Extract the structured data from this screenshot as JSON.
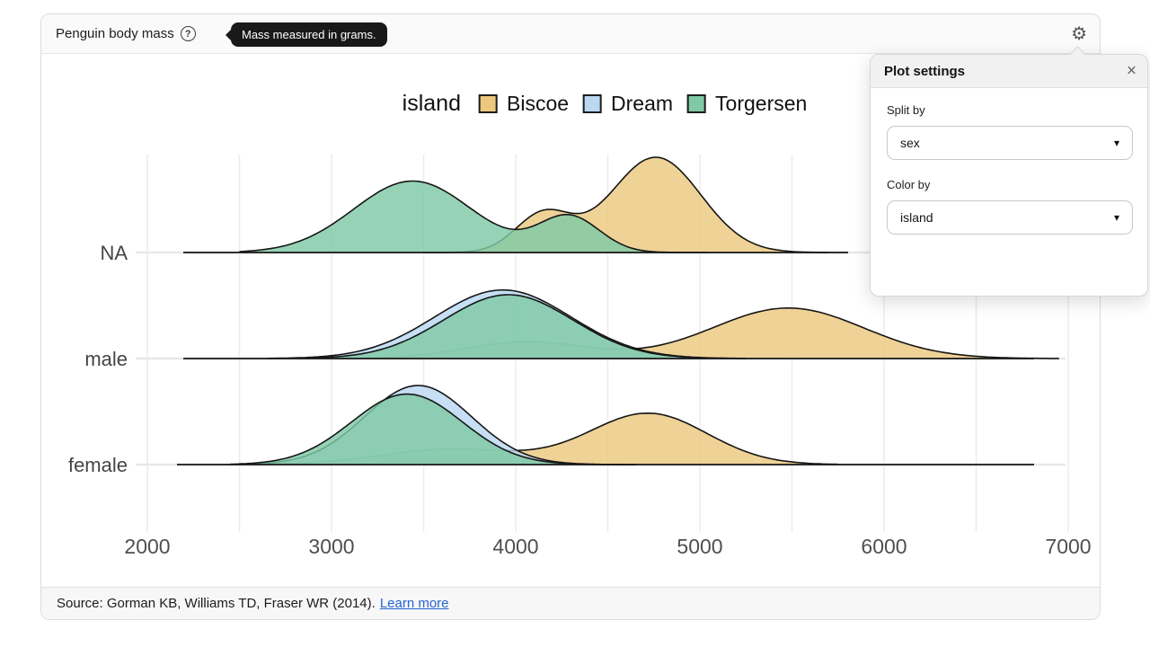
{
  "icons": {
    "help": "?",
    "gear": "⚙",
    "close": "×",
    "caret": "▾"
  },
  "header": {
    "title": "Penguin body mass",
    "tooltip": "Mass measured in grams."
  },
  "settings_panel": {
    "title": "Plot settings",
    "split_by": {
      "label": "Split by",
      "value": "sex"
    },
    "color_by": {
      "label": "Color by",
      "value": "island"
    }
  },
  "footer": {
    "source": "Source: Gorman KB, Williams TD, Fraser WR (2014).",
    "link": "Learn more"
  },
  "chart_data": {
    "type": "area",
    "variant": "ridgeline_density",
    "title": "Penguin body mass",
    "unit": "grams",
    "split_by": "sex",
    "color_by": "island",
    "legend": {
      "title": "island",
      "position": "top-center",
      "items": [
        {
          "label": "Biscoe",
          "color": "#ecc87f"
        },
        {
          "label": "Dream",
          "color": "#b9d8f2"
        },
        {
          "label": "Torgersen",
          "color": "#7fc9a6"
        }
      ]
    },
    "x_axis": {
      "min": 2000,
      "max": 7000,
      "ticks": [
        2000,
        3000,
        4000,
        5000,
        6000,
        7000
      ],
      "grid_step": 500,
      "grid": true
    },
    "rows": [
      {
        "label": "NA",
        "series": [
          {
            "name": "Biscoe",
            "peak_mass": 4760,
            "peak_height": 1.0,
            "mass_range": [
              3500,
              5700
            ],
            "components": [
              {
                "mean": 4150,
                "sd": 150,
                "w": 0.4
              },
              {
                "mean": 4760,
                "sd": 245,
                "w": 1
              }
            ]
          },
          {
            "name": "Torgersen",
            "peak_mass": 3440,
            "peak_height": 0.75,
            "mass_range": [
              2500,
              5050
            ],
            "components": [
              {
                "mean": 3440,
                "sd": 320,
                "w": 1
              },
              {
                "mean": 4290,
                "sd": 165,
                "w": 0.5
              }
            ]
          }
        ]
      },
      {
        "label": "male",
        "series": [
          {
            "name": "Biscoe",
            "peak_mass": 5480,
            "peak_height": 0.53,
            "mass_range": [
              3050,
              6950
            ],
            "components": [
              {
                "mean": 4060,
                "sd": 330,
                "w": 0.33
              },
              {
                "mean": 5480,
                "sd": 410,
                "w": 1
              }
            ]
          },
          {
            "name": "Dream",
            "peak_mass": 3930,
            "peak_height": 0.72,
            "mass_range": [
              2650,
              5250
            ],
            "components": [
              {
                "mean": 3930,
                "sd": 370,
                "w": 1
              }
            ]
          },
          {
            "name": "Torgersen",
            "peak_mass": 3960,
            "peak_height": 0.67,
            "mass_range": [
              2800,
              5150
            ],
            "components": [
              {
                "mean": 3960,
                "sd": 350,
                "w": 1
              }
            ]
          }
        ]
      },
      {
        "label": "female",
        "series": [
          {
            "name": "Biscoe",
            "peak_mass": 4720,
            "peak_height": 0.54,
            "mass_range": [
              2650,
              5750
            ],
            "components": [
              {
                "mean": 3650,
                "sd": 380,
                "w": 0.3
              },
              {
                "mean": 4720,
                "sd": 320,
                "w": 1
              }
            ]
          },
          {
            "name": "Dream",
            "peak_mass": 3470,
            "peak_height": 0.83,
            "mass_range": [
              2500,
              4650
            ],
            "components": [
              {
                "mean": 3470,
                "sd": 290,
                "w": 1
              }
            ]
          },
          {
            "name": "Torgersen",
            "peak_mass": 3410,
            "peak_height": 0.74,
            "mass_range": [
              2450,
              4650
            ],
            "components": [
              {
                "mean": 3410,
                "sd": 300,
                "w": 1
              }
            ]
          }
        ]
      }
    ]
  }
}
